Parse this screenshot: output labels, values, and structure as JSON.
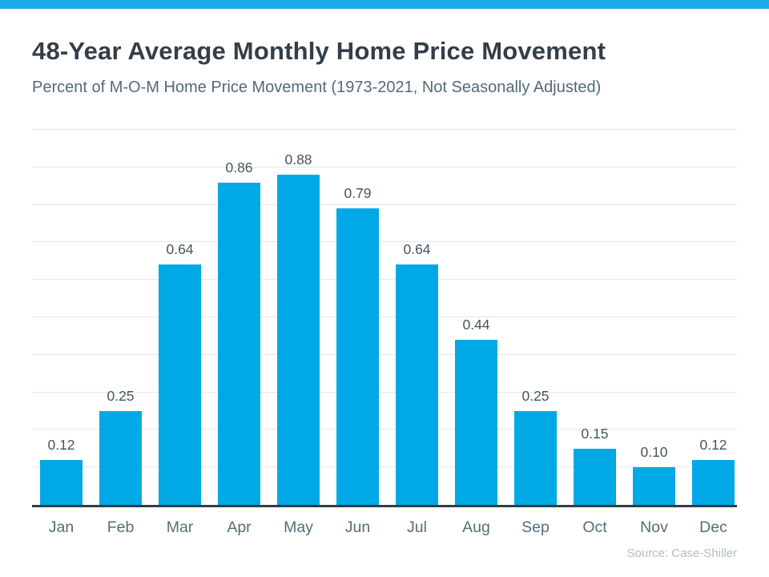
{
  "accent_color": "#00A9E5",
  "colors": {
    "bar": "#00A9E5",
    "top_strip": "#1CACE8",
    "title_text": "#333E48",
    "subtitle_text": "#526A77",
    "value_label_text": "#44565F",
    "month_label_text": "#546E7A",
    "axis_line": "#333E47",
    "gridline": "#E3E6E9",
    "source_text": "#B2BCC6"
  },
  "header": {
    "title": "48-Year Average Monthly Home Price Movement",
    "subtitle": "Percent of M-O-M Home Price Movement (1973-2021, Not Seasonally Adjusted)"
  },
  "source_label": "Source: Case-Shiller",
  "chart_data": {
    "type": "bar",
    "title": "48-Year Average Monthly Home Price Movement",
    "subtitle": "Percent of M-O-M Home Price Movement (1973-2021, Not Seasonally Adjusted)",
    "categories": [
      "Jan",
      "Feb",
      "Mar",
      "Apr",
      "May",
      "Jun",
      "Jul",
      "Aug",
      "Sep",
      "Oct",
      "Nov",
      "Dec"
    ],
    "values": [
      0.12,
      0.25,
      0.64,
      0.86,
      0.88,
      0.79,
      0.64,
      0.44,
      0.25,
      0.15,
      0.1,
      0.12
    ],
    "value_labels": [
      "0.12",
      "0.25",
      "0.64",
      "0.86",
      "0.88",
      "0.79",
      "0.64",
      "0.44",
      "0.25",
      "0.15",
      "0.10",
      "0.12"
    ],
    "xlabel": "",
    "ylabel": "",
    "ylim": [
      0,
      1.0
    ],
    "grid_step": 0.1,
    "grid": true,
    "y_tick_labels_visible": false,
    "legend_position": "none",
    "bar_color": "#00A9E5",
    "source": "Source: Case-Shiller"
  }
}
